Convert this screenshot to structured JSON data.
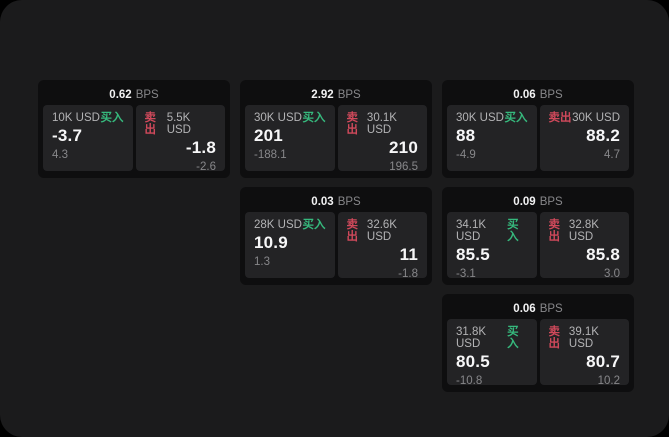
{
  "colors": {
    "buy": "#36b97d",
    "sell": "#d0495b",
    "window_bg": "#1b1b1c",
    "card_bg": "#0e0e0f",
    "tile_bg": "#232325"
  },
  "labels": {
    "buy": "买入",
    "sell": "卖出",
    "bps_unit": "BPS"
  },
  "cards": [
    {
      "spread_bps": "0.62",
      "grid_position": {
        "row": 1,
        "col": 1
      },
      "buy": {
        "amount": "10K USD",
        "price": "-3.7",
        "change": "4.3"
      },
      "sell": {
        "amount": "5.5K USD",
        "price": "-1.8",
        "change": "-2.6"
      }
    },
    {
      "spread_bps": "2.92",
      "grid_position": {
        "row": 1,
        "col": 2
      },
      "buy": {
        "amount": "30K USD",
        "price": "201",
        "change": "-188.1"
      },
      "sell": {
        "amount": "30.1K USD",
        "price": "210",
        "change": "196.5"
      }
    },
    {
      "spread_bps": "0.06",
      "grid_position": {
        "row": 1,
        "col": 3
      },
      "buy": {
        "amount": "30K USD",
        "price": "88",
        "change": "-4.9"
      },
      "sell": {
        "amount": "30K USD",
        "price": "88.2",
        "change": "4.7"
      }
    },
    {
      "spread_bps": "0.03",
      "grid_position": {
        "row": 2,
        "col": 2
      },
      "buy": {
        "amount": "28K USD",
        "price": "10.9",
        "change": "1.3"
      },
      "sell": {
        "amount": "32.6K USD",
        "price": "11",
        "change": "-1.8"
      }
    },
    {
      "spread_bps": "0.09",
      "grid_position": {
        "row": 2,
        "col": 3
      },
      "buy": {
        "amount": "34.1K USD",
        "price": "85.5",
        "change": "-3.1"
      },
      "sell": {
        "amount": "32.8K USD",
        "price": "85.8",
        "change": "3.0"
      }
    },
    {
      "spread_bps": "0.06",
      "grid_position": {
        "row": 3,
        "col": 3
      },
      "buy": {
        "amount": "31.8K USD",
        "price": "80.5",
        "change": "-10.8"
      },
      "sell": {
        "amount": "39.1K USD",
        "price": "80.7",
        "change": "10.2"
      }
    }
  ]
}
